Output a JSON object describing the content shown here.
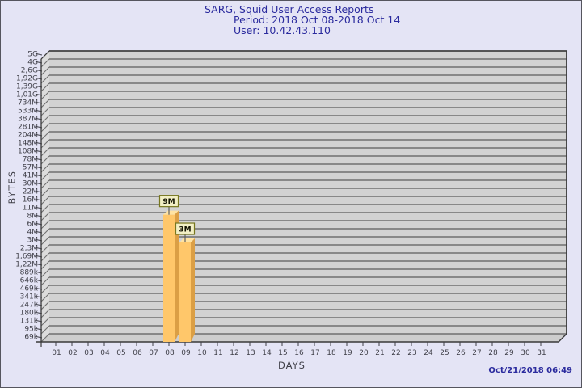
{
  "header": {
    "title": "SARG, Squid User Access Reports",
    "period": "Period: 2018 Oct 08-2018 Oct 14",
    "user": "User: 10.42.43.110"
  },
  "footer": {
    "generated": "Oct/21/2018 06:49"
  },
  "chart_data": {
    "type": "bar",
    "title": "SARG, Squid User Access Reports",
    "subtitle1": "Period: 2018 Oct 08-2018 Oct 14",
    "subtitle2": "User: 10.42.43.110",
    "xlabel": "DAYS",
    "ylabel": "BYTES",
    "style": "3d-bar, gray plot panel, log-like byte scale, grid on",
    "x_categories": [
      "01",
      "02",
      "03",
      "04",
      "05",
      "06",
      "07",
      "08",
      "09",
      "10",
      "11",
      "12",
      "13",
      "14",
      "15",
      "16",
      "17",
      "18",
      "19",
      "20",
      "21",
      "22",
      "23",
      "24",
      "25",
      "26",
      "27",
      "28",
      "29",
      "30",
      "31"
    ],
    "y_tick_labels_top_to_bottom": [
      "5G",
      "4G",
      "2,6G",
      "1,92G",
      "1,39G",
      "1,01G",
      "734M",
      "533M",
      "387M",
      "281M",
      "204M",
      "148M",
      "108M",
      "78M",
      "57M",
      "41M",
      "30M",
      "22M",
      "16M",
      "11M",
      "8M",
      "6M",
      "4M",
      "3M",
      "2,3M",
      "1,69M",
      "1,22M",
      "889k",
      "646k",
      "469k",
      "341k",
      "247k",
      "180k",
      "131k",
      "95k",
      "69k"
    ],
    "y_scale": {
      "type": "log",
      "min_bytes": 69000,
      "max_bytes": 5000000000
    },
    "bars": [
      {
        "day": "08",
        "label": "9M",
        "bytes": 9000000
      },
      {
        "day": "09",
        "label": "3M",
        "bytes": 3000000
      }
    ]
  },
  "colors": {
    "background": "#E4E4F5",
    "frame_border": "#55555E",
    "title_text": "#2B2B9E",
    "axis_text": "#3F3F48",
    "plot_back": "#D2D2D2",
    "plot_wall": "#DCDCDC",
    "plot_floor": "#CDCDCD",
    "gridline": "#6F6F6F",
    "plot_edge": "#3A3A3A",
    "bar_front": "#FFC76A",
    "bar_side": "#DB9F45",
    "bar_top": "#FFE3A2",
    "value_box_fill": "#F2EFC5",
    "value_box_border": "#77771F",
    "value_box_text": "#111100",
    "connector": "#5E5E5E",
    "datetime_text": "#2B2B9E"
  }
}
